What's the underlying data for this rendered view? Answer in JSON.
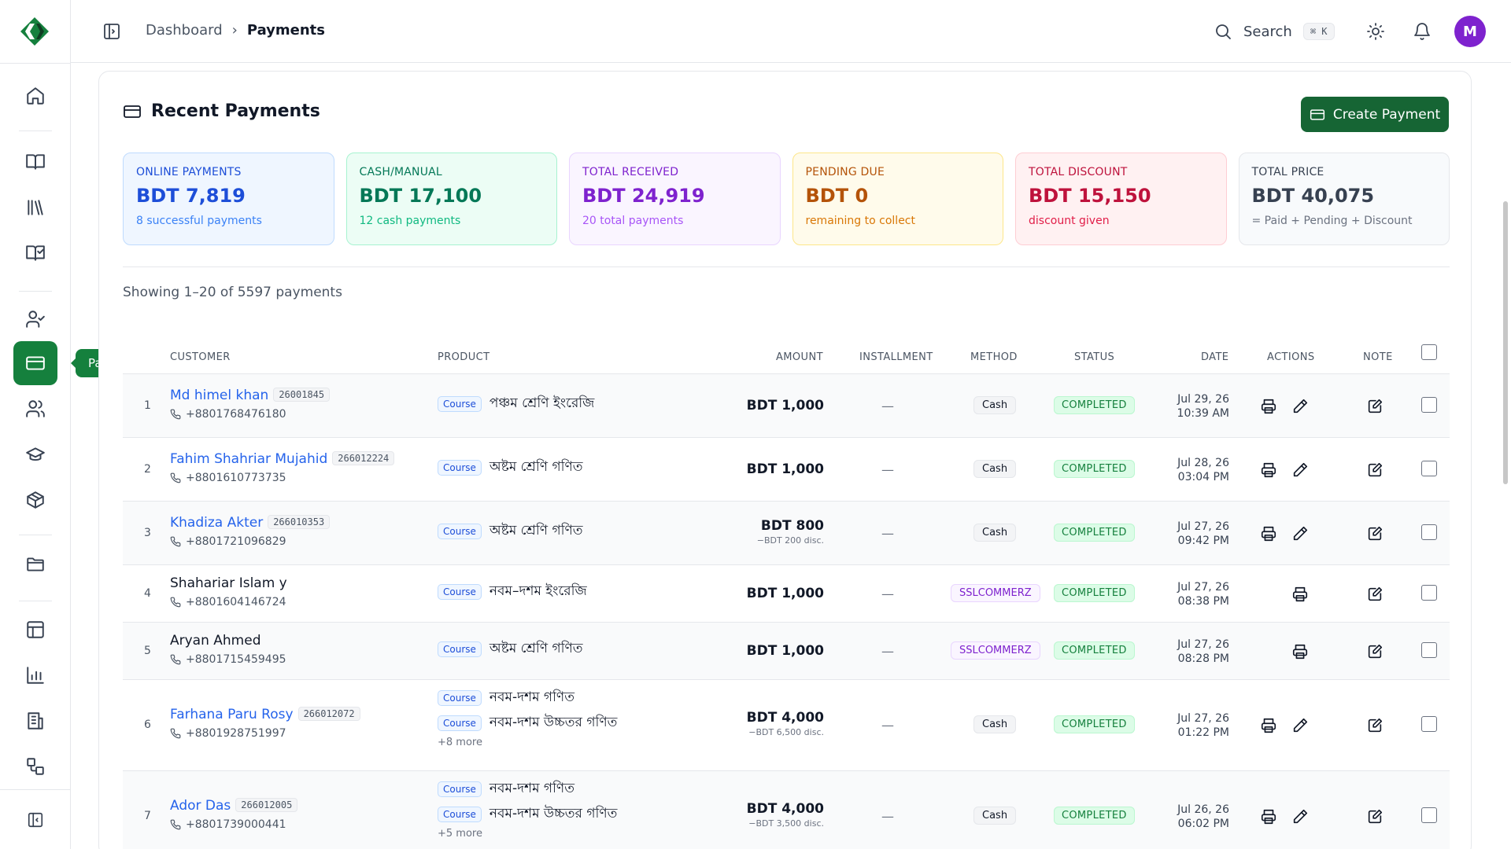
{
  "sidebar": {
    "tooltip": "Payments",
    "items": [
      {
        "icon": "home-icon"
      },
      {
        "icon": "book-open-icon"
      },
      {
        "icon": "library-icon"
      },
      {
        "icon": "book-check-icon"
      },
      {
        "icon": "user-check-icon"
      },
      {
        "icon": "credit-card-icon",
        "active": true
      },
      {
        "icon": "users-icon"
      },
      {
        "icon": "graduation-cap-icon"
      },
      {
        "icon": "package-icon"
      },
      {
        "icon": "folder-icon"
      },
      {
        "icon": "layout-icon"
      },
      {
        "icon": "bar-chart-icon"
      },
      {
        "icon": "building-icon"
      },
      {
        "icon": "workflow-icon"
      },
      {
        "icon": "sidebar-collapse-icon"
      }
    ]
  },
  "header": {
    "breadcrumb_parent": "Dashboard",
    "breadcrumb_current": "Payments",
    "search_label": "Search",
    "search_kbd": "⌘ K",
    "avatar_letter": "M"
  },
  "main": {
    "title": "Recent Payments",
    "create_button": "Create Payment",
    "showing": "Showing 1–20 of 5597 payments",
    "stats": [
      {
        "label": "ONLINE PAYMENTS",
        "value": "BDT 7,819",
        "sub": "8 successful payments"
      },
      {
        "label": "CASH/MANUAL",
        "value": "BDT 17,100",
        "sub": "12 cash payments"
      },
      {
        "label": "TOTAL RECEIVED",
        "value": "BDT 24,919",
        "sub": "20 total payments"
      },
      {
        "label": "PENDING DUE",
        "value": "BDT 0",
        "sub": "remaining to collect"
      },
      {
        "label": "TOTAL DISCOUNT",
        "value": "BDT 15,150",
        "sub": "discount given"
      },
      {
        "label": "TOTAL PRICE",
        "value": "BDT 40,075",
        "sub": "= Paid + Pending + Discount"
      }
    ],
    "columns": {
      "customer": "CUSTOMER",
      "product": "PRODUCT",
      "amount": "AMOUNT",
      "installment": "INSTALLMENT",
      "method": "METHOD",
      "status": "STATUS",
      "date": "DATE",
      "actions": "ACTIONS",
      "note": "NOTE"
    },
    "rows": [
      {
        "idx": "1",
        "name": "Md himel khan",
        "cid": "26001845",
        "phone": "+8801768476180",
        "products": [
          {
            "tag": "Course",
            "name": "পঞ্চম শ্রেণি ইংরেজি"
          }
        ],
        "more": "",
        "amount": "BDT 1,000",
        "disc": "",
        "installment": "—",
        "method": "Cash",
        "status": "COMPLETED",
        "date": "Jul 29, 26",
        "time": "10:39 AM"
      },
      {
        "idx": "2",
        "name": "Fahim Shahriar Mujahid",
        "cid": "266012224",
        "phone": "+8801610773735",
        "products": [
          {
            "tag": "Course",
            "name": "অষ্টম শ্রেণি গণিত"
          }
        ],
        "more": "",
        "amount": "BDT 1,000",
        "disc": "",
        "installment": "—",
        "method": "Cash",
        "status": "COMPLETED",
        "date": "Jul 28, 26",
        "time": "03:04 PM"
      },
      {
        "idx": "3",
        "name": "Khadiza Akter",
        "cid": "266010353",
        "phone": "+8801721096829",
        "products": [
          {
            "tag": "Course",
            "name": "অষ্টম শ্রেণি গণিত"
          }
        ],
        "more": "",
        "amount": "BDT 800",
        "disc": "−BDT 200 disc.",
        "installment": "—",
        "method": "Cash",
        "status": "COMPLETED",
        "date": "Jul 27, 26",
        "time": "09:42 PM"
      },
      {
        "idx": "4",
        "name": "Shahariar Islam y",
        "cid": "",
        "phone": "+8801604146724",
        "products": [
          {
            "tag": "Course",
            "name": "নবম–দশম ইংরেজি"
          }
        ],
        "more": "",
        "amount": "BDT 1,000",
        "disc": "",
        "installment": "—",
        "method": "SSLCOMMERZ",
        "status": "COMPLETED",
        "date": "Jul 27, 26",
        "time": "08:38 PM"
      },
      {
        "idx": "5",
        "name": "Aryan Ahmed",
        "cid": "",
        "phone": "+8801715459495",
        "products": [
          {
            "tag": "Course",
            "name": "অষ্টম শ্রেণি গণিত"
          }
        ],
        "more": "",
        "amount": "BDT 1,000",
        "disc": "",
        "installment": "—",
        "method": "SSLCOMMERZ",
        "status": "COMPLETED",
        "date": "Jul 27, 26",
        "time": "08:28 PM"
      },
      {
        "idx": "6",
        "name": "Farhana Paru Rosy",
        "cid": "266012072",
        "phone": "+8801928751997",
        "products": [
          {
            "tag": "Course",
            "name": "নবম-দশম গণিত"
          },
          {
            "tag": "Course",
            "name": "নবম-দশম উচ্চতর গণিত"
          }
        ],
        "more": "+8 more",
        "amount": "BDT 4,000",
        "disc": "−BDT 6,500 disc.",
        "installment": "—",
        "method": "Cash",
        "status": "COMPLETED",
        "date": "Jul 27, 26",
        "time": "01:22 PM"
      },
      {
        "idx": "7",
        "name": "Ador Das",
        "cid": "266012005",
        "phone": "+8801739000441",
        "products": [
          {
            "tag": "Course",
            "name": "নবম-দশম গণিত"
          },
          {
            "tag": "Course",
            "name": "নবম-দশম উচ্চতর গণিত"
          }
        ],
        "more": "+5 more",
        "amount": "BDT 4,000",
        "disc": "−BDT 3,500 disc.",
        "installment": "—",
        "method": "Cash",
        "status": "COMPLETED",
        "date": "Jul 26, 26",
        "time": "06:02 PM"
      }
    ]
  }
}
